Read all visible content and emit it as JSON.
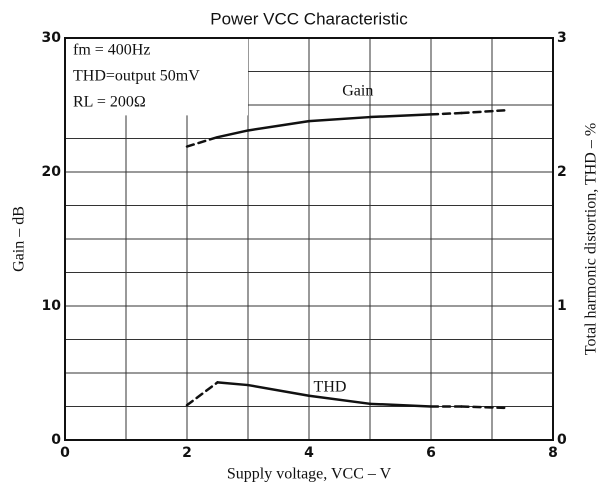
{
  "chart_data": {
    "type": "line",
    "title": "Power VCC Characteristic",
    "x_label": "Supply voltage, VCC  –  V",
    "y_label": "Gain  –  dB",
    "y2_label": "Total harmonic distortion, THD  –  %",
    "annotations": [
      "fm = 400Hz",
      "THD=output 50mV",
      "RL = 200Ω"
    ],
    "xlim": [
      0,
      8
    ],
    "xticks": [
      0,
      2,
      4,
      6,
      8
    ],
    "xgrid": [
      0,
      1,
      2,
      3,
      4,
      5,
      6,
      7,
      8
    ],
    "ylim": [
      0,
      30
    ],
    "yticks": [
      0,
      10,
      20,
      30
    ],
    "ygrid": [
      0,
      2.5,
      5,
      7.5,
      10,
      12.5,
      15,
      17.5,
      20,
      22.5,
      25,
      27.5,
      30
    ],
    "y2lim": [
      0,
      3
    ],
    "y2ticks": [
      0,
      1,
      2,
      3
    ],
    "grid": true,
    "series": [
      {
        "name": "Gain",
        "color": "#111111",
        "x": [
          2,
          2.5,
          3,
          4,
          5,
          6,
          6.5,
          7.2
        ],
        "values": [
          21.9,
          22.6,
          23.1,
          23.8,
          24.1,
          24.3,
          24.4,
          24.6
        ],
        "solid": [
          false,
          true,
          true,
          true,
          true,
          true,
          false,
          false
        ]
      },
      {
        "name": "THD",
        "color": "#111111",
        "axis": "y2",
        "x": [
          2,
          2.5,
          3,
          4,
          5,
          6,
          6.5,
          7.2
        ],
        "values": [
          0.26,
          0.43,
          0.41,
          0.33,
          0.27,
          0.25,
          0.25,
          0.24
        ],
        "solid": [
          false,
          true,
          true,
          true,
          true,
          true,
          false,
          false
        ]
      }
    ]
  }
}
